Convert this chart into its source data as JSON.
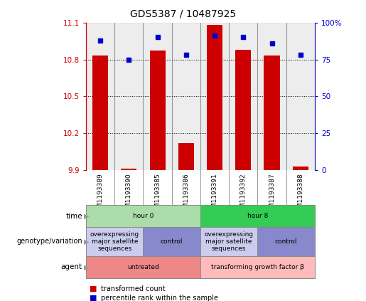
{
  "title": "GDS5387 / 10487925",
  "samples": [
    "GSM1193389",
    "GSM1193390",
    "GSM1193385",
    "GSM1193386",
    "GSM1193391",
    "GSM1193392",
    "GSM1193387",
    "GSM1193388"
  ],
  "red_values": [
    10.83,
    9.91,
    10.87,
    10.12,
    11.08,
    10.88,
    10.83,
    9.93
  ],
  "blue_values": [
    88,
    75,
    90,
    78,
    91,
    90,
    86,
    78
  ],
  "y_min": 9.9,
  "y_max": 11.1,
  "y_ticks_left": [
    9.9,
    10.2,
    10.5,
    10.8,
    11.1
  ],
  "y_ticks_right": [
    0,
    25,
    50,
    75,
    100
  ],
  "left_color": "#cc0000",
  "right_color": "#0000cc",
  "bar_color": "#cc0000",
  "dot_color": "#0000cc",
  "col_bg_color": "#cccccc",
  "time_row": {
    "label": "time",
    "groups": [
      {
        "text": "hour 0",
        "start": 0,
        "end": 4,
        "color": "#aaddaa"
      },
      {
        "text": "hour 8",
        "start": 4,
        "end": 8,
        "color": "#33cc55"
      }
    ]
  },
  "genotype_row": {
    "label": "genotype/variation",
    "groups": [
      {
        "text": "overexpressing\nmajor satellite\nsequences",
        "start": 0,
        "end": 2,
        "color": "#ccccee"
      },
      {
        "text": "control",
        "start": 2,
        "end": 4,
        "color": "#8888cc"
      },
      {
        "text": "overexpressing\nmajor satellite\nsequences",
        "start": 4,
        "end": 6,
        "color": "#ccccee"
      },
      {
        "text": "control",
        "start": 6,
        "end": 8,
        "color": "#8888cc"
      }
    ]
  },
  "agent_row": {
    "label": "agent",
    "groups": [
      {
        "text": "untreated",
        "start": 0,
        "end": 4,
        "color": "#ee8888"
      },
      {
        "text": "transforming growth factor β",
        "start": 4,
        "end": 8,
        "color": "#ffbbbb"
      }
    ]
  },
  "legend_items": [
    {
      "color": "#cc0000",
      "label": "transformed count"
    },
    {
      "color": "#0000cc",
      "label": "percentile rank within the sample"
    }
  ]
}
